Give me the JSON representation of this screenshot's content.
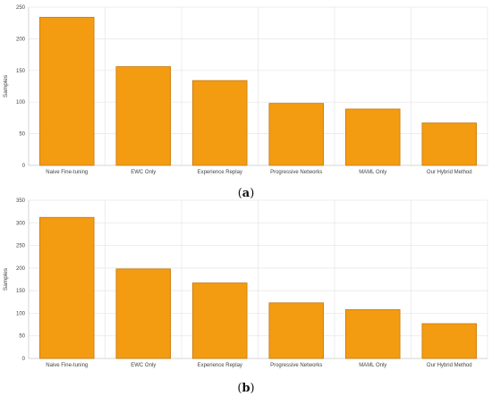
{
  "colors": {
    "bar": "#F39C12",
    "bar_edge": "#C7780B",
    "grid": "#E6E6E6"
  },
  "chart_data": [
    {
      "type": "bar",
      "panel_label": "a",
      "categories": [
        "Naive Fine-tuning",
        "EWC Only",
        "Experience Replay",
        "Progressive Networks",
        "MAML Only",
        "Our Hybrid Method"
      ],
      "values": [
        234,
        156,
        134,
        98,
        89,
        67
      ],
      "ylabel": "Samples",
      "ylim": [
        0,
        250
      ],
      "yticks": [
        0,
        50,
        100,
        150,
        200,
        250
      ],
      "grid": true
    },
    {
      "type": "bar",
      "panel_label": "b",
      "categories": [
        "Naive Fine-tuning",
        "EWC Only",
        "Experience Replay",
        "Progressive Networks",
        "MAML Only",
        "Our Hybrid Method"
      ],
      "values": [
        312,
        198,
        167,
        123,
        108,
        77
      ],
      "ylabel": "Samples",
      "ylim": [
        0,
        350
      ],
      "yticks": [
        0,
        50,
        100,
        150,
        200,
        250,
        300,
        350
      ],
      "grid": true
    }
  ]
}
